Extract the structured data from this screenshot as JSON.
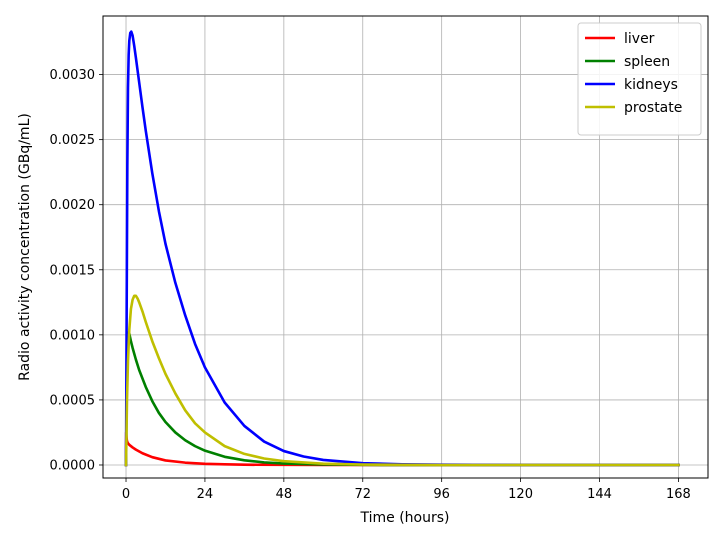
{
  "chart_data": {
    "type": "line",
    "title": "",
    "xlabel": "Time (hours)",
    "ylabel": "Radio activity concentration (GBq/mL)",
    "xlim": [
      -7,
      177
    ],
    "ylim": [
      -0.0001,
      0.00345
    ],
    "xticks": [
      0,
      24,
      48,
      72,
      96,
      120,
      144,
      168
    ],
    "xtick_labels": [
      "0",
      "24",
      "48",
      "72",
      "96",
      "120",
      "144",
      "168"
    ],
    "yticks": [
      0,
      0.0005,
      0.001,
      0.0015,
      0.002,
      0.0025,
      0.003
    ],
    "ytick_labels": [
      "0.0000",
      "0.0005",
      "0.0010",
      "0.0015",
      "0.0020",
      "0.0025",
      "0.0030"
    ],
    "grid": true,
    "legend_position": "top-right",
    "series": [
      {
        "name": "liver",
        "color": "#ff0000",
        "x": [
          0,
          0.05,
          0.1,
          0.2,
          0.3,
          0.5,
          1,
          2,
          3,
          5,
          8,
          12,
          18,
          24,
          30,
          36,
          48,
          60,
          72,
          96,
          120,
          144,
          168
        ],
        "y": [
          0,
          0.00025,
          0.00023,
          0.0002,
          0.000185,
          0.00017,
          0.000155,
          0.000135,
          0.000118,
          9e-05,
          6e-05,
          3.5e-05,
          1.8e-05,
          9e-06,
          5e-06,
          2e-06,
          1e-06,
          0,
          0,
          0,
          0,
          0,
          0
        ]
      },
      {
        "name": "spleen",
        "color": "#008000",
        "x": [
          0,
          0.2,
          0.5,
          0.8,
          1,
          1.5,
          2,
          3,
          4,
          6,
          8,
          10,
          12,
          15,
          18,
          21,
          24,
          30,
          36,
          42,
          48,
          60,
          72,
          96,
          120,
          144,
          168
        ],
        "y": [
          0,
          0.0005,
          0.0009,
          0.00102,
          0.00101,
          0.00095,
          0.0009,
          0.00081,
          0.00073,
          0.0006,
          0.00049,
          0.0004,
          0.00033,
          0.00025,
          0.00019,
          0.000145,
          0.00011,
          6.3e-05,
          3.6e-05,
          2e-05,
          1.1e-05,
          4e-06,
          1e-06,
          0,
          0,
          0,
          0
        ]
      },
      {
        "name": "kidneys",
        "color": "#0000ff",
        "x": [
          0,
          0.2,
          0.4,
          0.6,
          0.8,
          1,
          1.3,
          1.6,
          2,
          2.5,
          3,
          4,
          5,
          6,
          8,
          10,
          12,
          15,
          18,
          21,
          24,
          30,
          36,
          42,
          48,
          54,
          60,
          72,
          84,
          96,
          120,
          144,
          168
        ],
        "y": [
          0,
          0.0012,
          0.0023,
          0.0029,
          0.00315,
          0.00326,
          0.00332,
          0.00333,
          0.0033,
          0.00322,
          0.00313,
          0.00294,
          0.00275,
          0.00257,
          0.00224,
          0.00195,
          0.0017,
          0.0014,
          0.00115,
          0.00093,
          0.00075,
          0.00048,
          0.0003,
          0.00018,
          0.000107,
          6.5e-05,
          3.9e-05,
          1.4e-05,
          5e-06,
          2e-06,
          0,
          0,
          0
        ]
      },
      {
        "name": "prostate",
        "color": "#bfbf00",
        "x": [
          0,
          0.3,
          0.6,
          1,
          1.5,
          2,
          2.5,
          3,
          3.5,
          4,
          5,
          6,
          8,
          10,
          12,
          15,
          18,
          21,
          24,
          30,
          36,
          42,
          48,
          60,
          72,
          96,
          120,
          144,
          168
        ],
        "y": [
          0,
          0.0005,
          0.0008,
          0.00104,
          0.0012,
          0.00127,
          0.0013,
          0.0013,
          0.00128,
          0.00125,
          0.00118,
          0.0011,
          0.00095,
          0.00082,
          0.0007,
          0.00055,
          0.00042,
          0.00032,
          0.00025,
          0.000145,
          8.5e-05,
          5e-05,
          2.9e-05,
          1e-05,
          3e-06,
          0,
          0,
          0,
          0
        ]
      }
    ]
  }
}
